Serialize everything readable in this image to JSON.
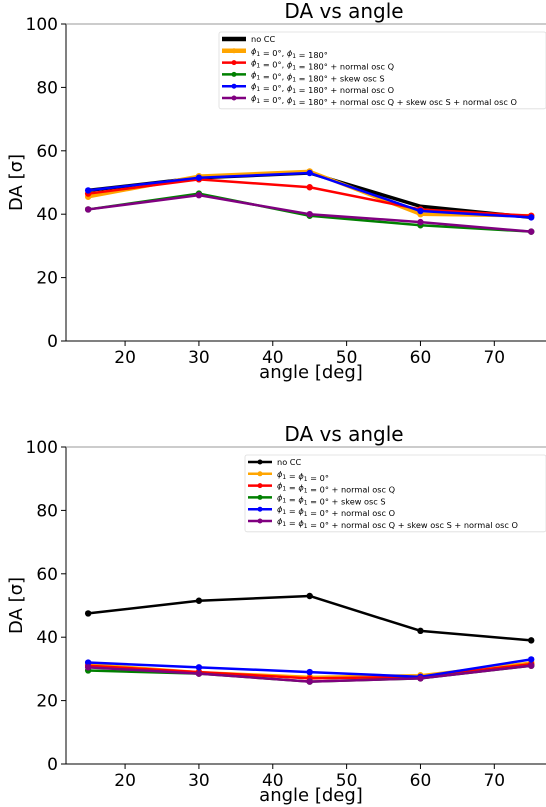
{
  "chart_data": [
    {
      "type": "line",
      "title": "DA vs angle",
      "xlabel": "angle [deg]",
      "ylabel": "DA [σ]",
      "xlim": [
        12,
        77
      ],
      "ylim": [
        0,
        100
      ],
      "xticks": [
        20,
        30,
        40,
        50,
        60,
        70
      ],
      "yticks": [
        0,
        20,
        40,
        60,
        80,
        100
      ],
      "grid": false,
      "legend_position": "top-right",
      "x": [
        15,
        30,
        45,
        60,
        75
      ],
      "series": [
        {
          "name": "no CC",
          "color": "#000000",
          "values": [
            47.5,
            51.5,
            53.0,
            42.5,
            39.0
          ],
          "markers": false,
          "width": 3
        },
        {
          "name": "ϕ1 = 0°, ϕ1 = 180°",
          "color": "#ffa500",
          "values": [
            45.5,
            52.0,
            53.5,
            40.0,
            39.5
          ],
          "markers": true,
          "width": 3
        },
        {
          "name": "ϕ1 = 0°, ϕ1 = 180° + normal osc Q",
          "color": "#ff0000",
          "values": [
            46.5,
            51.0,
            48.5,
            41.5,
            39.5
          ],
          "markers": true,
          "width": 2
        },
        {
          "name": "ϕ1 = 0°, ϕ1 = 180° + skew osc S",
          "color": "#008000",
          "values": [
            41.5,
            46.5,
            39.5,
            36.5,
            34.5
          ],
          "markers": true,
          "width": 2
        },
        {
          "name": "ϕ1 = 0°, ϕ1 = 180° + normal osc O",
          "color": "#0000ff",
          "values": [
            47.5,
            51.5,
            53.0,
            41.0,
            39.0
          ],
          "markers": true,
          "width": 2
        },
        {
          "name": "ϕ1 = 0°, ϕ1 = 180° + normal osc Q + skew osc S + normal osc O",
          "color": "#800080",
          "values": [
            41.5,
            46.0,
            40.0,
            37.5,
            34.5
          ],
          "markers": true,
          "width": 2
        }
      ]
    },
    {
      "type": "line",
      "title": "DA vs angle",
      "xlabel": "angle [deg]",
      "ylabel": "DA [σ]",
      "xlim": [
        12,
        77
      ],
      "ylim": [
        0,
        100
      ],
      "xticks": [
        20,
        30,
        40,
        50,
        60,
        70
      ],
      "yticks": [
        0,
        20,
        40,
        60,
        80,
        100
      ],
      "grid": false,
      "legend_position": "top-right",
      "x": [
        15,
        30,
        45,
        60,
        75
      ],
      "series": [
        {
          "name": "no CC",
          "color": "#000000",
          "values": [
            47.5,
            51.5,
            53.0,
            42.0,
            39.0
          ],
          "markers": true,
          "width": 2
        },
        {
          "name": "ϕ1 = ϕ1 = 0°",
          "color": "#ffa500",
          "values": [
            31.5,
            29.0,
            27.5,
            28.0,
            32.0
          ],
          "markers": true,
          "width": 2
        },
        {
          "name": "ϕ1 = ϕ1 = 0° + normal osc Q",
          "color": "#ff0000",
          "values": [
            31.0,
            29.0,
            27.0,
            27.5,
            31.5
          ],
          "markers": true,
          "width": 2
        },
        {
          "name": "ϕ1 = ϕ1 = 0° + skew osc S",
          "color": "#008000",
          "values": [
            29.5,
            28.5,
            26.0,
            27.0,
            31.0
          ],
          "markers": true,
          "width": 2
        },
        {
          "name": "ϕ1 = ϕ1 = 0° + normal osc O",
          "color": "#0000ff",
          "values": [
            32.0,
            30.5,
            29.0,
            27.5,
            33.0
          ],
          "markers": true,
          "width": 2
        },
        {
          "name": "ϕ1 = ϕ1 = 0° + normal osc Q + skew osc S + normal osc O",
          "color": "#800080",
          "values": [
            30.5,
            28.5,
            26.0,
            27.0,
            31.0
          ],
          "markers": true,
          "width": 2
        }
      ]
    }
  ]
}
